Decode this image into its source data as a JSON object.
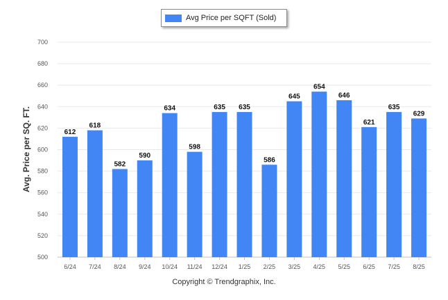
{
  "chart_data": {
    "type": "bar",
    "categories": [
      "6/24",
      "7/24",
      "8/24",
      "9/24",
      "10/24",
      "11/24",
      "12/24",
      "1/25",
      "2/25",
      "3/25",
      "4/25",
      "5/25",
      "6/25",
      "7/25",
      "8/25"
    ],
    "series": [
      {
        "name": "Avg Price per SQFT (Sold)",
        "values": [
          612,
          618,
          582,
          590,
          634,
          598,
          635,
          635,
          586,
          645,
          654,
          646,
          621,
          635,
          629
        ]
      }
    ],
    "xlabel": "",
    "ylabel": "Avg. Price per SQ. FT.",
    "ylim": [
      500,
      700
    ],
    "yticks": [
      500,
      520,
      540,
      560,
      580,
      600,
      620,
      640,
      660,
      680,
      700
    ],
    "grid": true,
    "legend": "top-center",
    "colors": {
      "bar": "#4285f4",
      "grid": "#e8e8e8",
      "axis": "#bfbfbf"
    }
  },
  "footer": {
    "copyright": "Copyright © Trendgraphix, Inc."
  }
}
